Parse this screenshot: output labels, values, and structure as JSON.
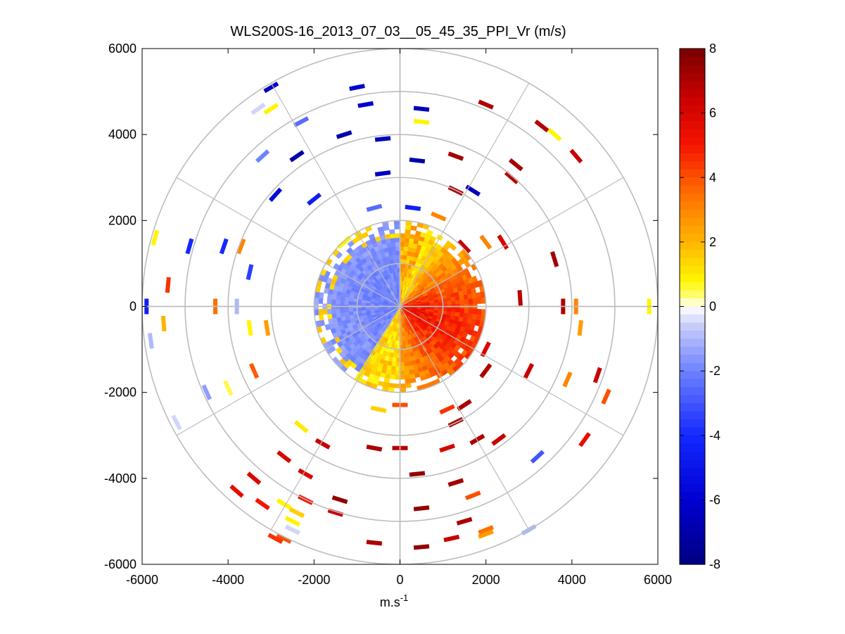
{
  "chart_data": {
    "type": "heatmap",
    "subtype": "polar-ppi",
    "title": "WLS200S-16_2013_07_03__05_45_35_PPI_Vr (m/s)",
    "xlabel": "m.s",
    "xlabel_superscript": "-1",
    "ylabel": "",
    "xlim": [
      -6000,
      6000
    ],
    "ylim": [
      -6000,
      6000
    ],
    "xticks": [
      -6000,
      -4000,
      -2000,
      0,
      2000,
      4000,
      6000
    ],
    "yticks": [
      6000,
      4000,
      2000,
      0,
      -2000,
      -4000,
      -6000
    ],
    "xtick_labels": [
      "-6000",
      "-4000",
      "-2000",
      "0",
      "2000",
      "4000",
      "6000"
    ],
    "ytick_labels": [
      "6000",
      "4000",
      "2000",
      "0",
      "-2000",
      "-4000",
      "-6000"
    ],
    "polar_grid": {
      "rings": [
        1000,
        2000,
        3000,
        4000,
        5000,
        6000
      ],
      "spoke_angles_deg": [
        0,
        30,
        60,
        90,
        120,
        150,
        180,
        210,
        240,
        270,
        300,
        330
      ]
    },
    "colorbar": {
      "min": -8,
      "max": 8,
      "ticks": [
        8,
        6,
        4,
        2,
        0,
        -2,
        -4,
        -6,
        -8
      ],
      "tick_labels": [
        "8",
        "6",
        "4",
        "2",
        "0",
        "-2",
        "-4",
        "-6",
        "-8"
      ],
      "colormap": "blue-white-yellow-red"
    },
    "field_description_values": {
      "inner_west_sector_velocity": -1.5,
      "inner_east_sector_velocity": 5.5,
      "dense_data_radius_m": 2000
    },
    "sparse_returns": [
      {
        "x": -3000,
        "y": 5100,
        "v": -6.5
      },
      {
        "x": -3300,
        "y": 4600,
        "v": -0.5
      },
      {
        "x": -3000,
        "y": 4600,
        "v": 0.8
      },
      {
        "x": -1000,
        "y": 5100,
        "v": -6.0
      },
      {
        "x": -800,
        "y": 4700,
        "v": -6.0
      },
      {
        "x": 500,
        "y": 4600,
        "v": -6.5
      },
      {
        "x": 500,
        "y": 4300,
        "v": 0.8
      },
      {
        "x": 2000,
        "y": 4700,
        "v": 7.0
      },
      {
        "x": 3300,
        "y": 4200,
        "v": 6.8
      },
      {
        "x": 3600,
        "y": 4000,
        "v": 0.8
      },
      {
        "x": 4100,
        "y": 3500,
        "v": 6.5
      },
      {
        "x": -2300,
        "y": 4300,
        "v": -2.5
      },
      {
        "x": -1300,
        "y": 4000,
        "v": -7.0
      },
      {
        "x": -400,
        "y": 3900,
        "v": -6.5
      },
      {
        "x": 400,
        "y": 3400,
        "v": -7.0
      },
      {
        "x": 1300,
        "y": 3500,
        "v": 7.2
      },
      {
        "x": 2700,
        "y": 3300,
        "v": 7.2
      },
      {
        "x": 1700,
        "y": 2700,
        "v": -6.5
      },
      {
        "x": 2600,
        "y": 3000,
        "v": 6.8
      },
      {
        "x": -2400,
        "y": 3500,
        "v": -7.0
      },
      {
        "x": -3200,
        "y": 3500,
        "v": -2.0
      },
      {
        "x": -2900,
        "y": 2600,
        "v": -5.5
      },
      {
        "x": -2000,
        "y": 2500,
        "v": -4.5
      },
      {
        "x": -400,
        "y": 3100,
        "v": -6.5
      },
      {
        "x": 1300,
        "y": 2700,
        "v": 7.0
      },
      {
        "x": -5700,
        "y": 1600,
        "v": 0.8
      },
      {
        "x": -5400,
        "y": 500,
        "v": 4.5
      },
      {
        "x": -5900,
        "y": 0,
        "v": -4.5
      },
      {
        "x": -4900,
        "y": 1400,
        "v": -4.0
      },
      {
        "x": -4100,
        "y": 1400,
        "v": -4.0
      },
      {
        "x": -3700,
        "y": 1400,
        "v": 3.0
      },
      {
        "x": -3500,
        "y": 800,
        "v": -3.5
      },
      {
        "x": -4300,
        "y": 0,
        "v": 3.5
      },
      {
        "x": -3800,
        "y": 0,
        "v": -1.0
      },
      {
        "x": -5500,
        "y": -400,
        "v": 2.0
      },
      {
        "x": -5800,
        "y": -800,
        "v": -1.0
      },
      {
        "x": -3500,
        "y": -500,
        "v": 0.8
      },
      {
        "x": -3100,
        "y": -500,
        "v": 2.5
      },
      {
        "x": -3400,
        "y": -1500,
        "v": 3.8
      },
      {
        "x": -4000,
        "y": -1900,
        "v": 0.5
      },
      {
        "x": -4500,
        "y": -2000,
        "v": -1.5
      },
      {
        "x": -5200,
        "y": -2700,
        "v": -0.5
      },
      {
        "x": 5800,
        "y": 0,
        "v": 0.8
      },
      {
        "x": 4100,
        "y": 0,
        "v": 3.0
      },
      {
        "x": 3800,
        "y": 0,
        "v": 7.0
      },
      {
        "x": 2800,
        "y": 200,
        "v": 6.8
      },
      {
        "x": 3600,
        "y": 1100,
        "v": 7.2
      },
      {
        "x": 4200,
        "y": -500,
        "v": 2.5
      },
      {
        "x": 4600,
        "y": -1600,
        "v": 6.5
      },
      {
        "x": 4800,
        "y": -2100,
        "v": 4.0
      },
      {
        "x": 3900,
        "y": -1700,
        "v": 3.0
      },
      {
        "x": 3000,
        "y": -1500,
        "v": 6.5
      },
      {
        "x": 2000,
        "y": -1500,
        "v": 7.0
      },
      {
        "x": 4300,
        "y": -3100,
        "v": 5.5
      },
      {
        "x": 3200,
        "y": -3500,
        "v": -3.0
      },
      {
        "x": 2300,
        "y": -3100,
        "v": 6.5
      },
      {
        "x": 1800,
        "y": -3100,
        "v": 7.0
      },
      {
        "x": 1100,
        "y": -3300,
        "v": 6.0
      },
      {
        "x": 1300,
        "y": -4100,
        "v": 7.2
      },
      {
        "x": 1700,
        "y": -4400,
        "v": 4.0
      },
      {
        "x": 2000,
        "y": -5200,
        "v": 3.5
      },
      {
        "x": 2000,
        "y": -5300,
        "v": 2.5
      },
      {
        "x": 3000,
        "y": -5200,
        "v": -1.0
      },
      {
        "x": 1500,
        "y": -5000,
        "v": 7.0
      },
      {
        "x": 1200,
        "y": -5400,
        "v": 6.5
      },
      {
        "x": 500,
        "y": -5600,
        "v": 7.5
      },
      {
        "x": 500,
        "y": -4700,
        "v": 7.5
      },
      {
        "x": 400,
        "y": -3900,
        "v": 7.5
      },
      {
        "x": 0,
        "y": -3300,
        "v": 6.8
      },
      {
        "x": -600,
        "y": -3300,
        "v": 7.0
      },
      {
        "x": -600,
        "y": -5500,
        "v": 7.0
      },
      {
        "x": -1400,
        "y": -4500,
        "v": 7.5
      },
      {
        "x": -1500,
        "y": -4800,
        "v": 6.5
      },
      {
        "x": -1800,
        "y": -3200,
        "v": 6.5
      },
      {
        "x": -2300,
        "y": -2800,
        "v": 1.0
      },
      {
        "x": -2700,
        "y": -3500,
        "v": 6.0
      },
      {
        "x": -2200,
        "y": -3900,
        "v": 6.0
      },
      {
        "x": -2200,
        "y": -4500,
        "v": 5.0
      },
      {
        "x": -2700,
        "y": -4600,
        "v": 0.8
      },
      {
        "x": -2400,
        "y": -4800,
        "v": 1.5
      },
      {
        "x": -3200,
        "y": -4600,
        "v": 5.0
      },
      {
        "x": -3400,
        "y": -4000,
        "v": 6.0
      },
      {
        "x": -3800,
        "y": -4300,
        "v": 5.5
      },
      {
        "x": -2500,
        "y": -5000,
        "v": 0.8
      },
      {
        "x": -2500,
        "y": -5200,
        "v": -0.5
      },
      {
        "x": -2700,
        "y": -5400,
        "v": 4.0
      },
      {
        "x": -2900,
        "y": -5400,
        "v": 4.5
      },
      {
        "x": -500,
        "y": -2400,
        "v": 1.5
      },
      {
        "x": 0,
        "y": -2300,
        "v": 4.0
      },
      {
        "x": 1100,
        "y": -2400,
        "v": 4.5
      },
      {
        "x": 1300,
        "y": -2700,
        "v": 7.0
      },
      {
        "x": 1500,
        "y": -2300,
        "v": 7.0
      },
      {
        "x": 2000,
        "y": -1000,
        "v": 6.0
      },
      {
        "x": -1300,
        "y": 1500,
        "v": 0.8
      },
      {
        "x": -600,
        "y": 2300,
        "v": -2.5
      },
      {
        "x": 300,
        "y": 2300,
        "v": -4.5
      },
      {
        "x": 900,
        "y": 2100,
        "v": 3.0
      },
      {
        "x": 1500,
        "y": 1400,
        "v": 6.5
      },
      {
        "x": 2000,
        "y": 1500,
        "v": 3.0
      },
      {
        "x": 2400,
        "y": 1500,
        "v": 6.0
      }
    ]
  }
}
